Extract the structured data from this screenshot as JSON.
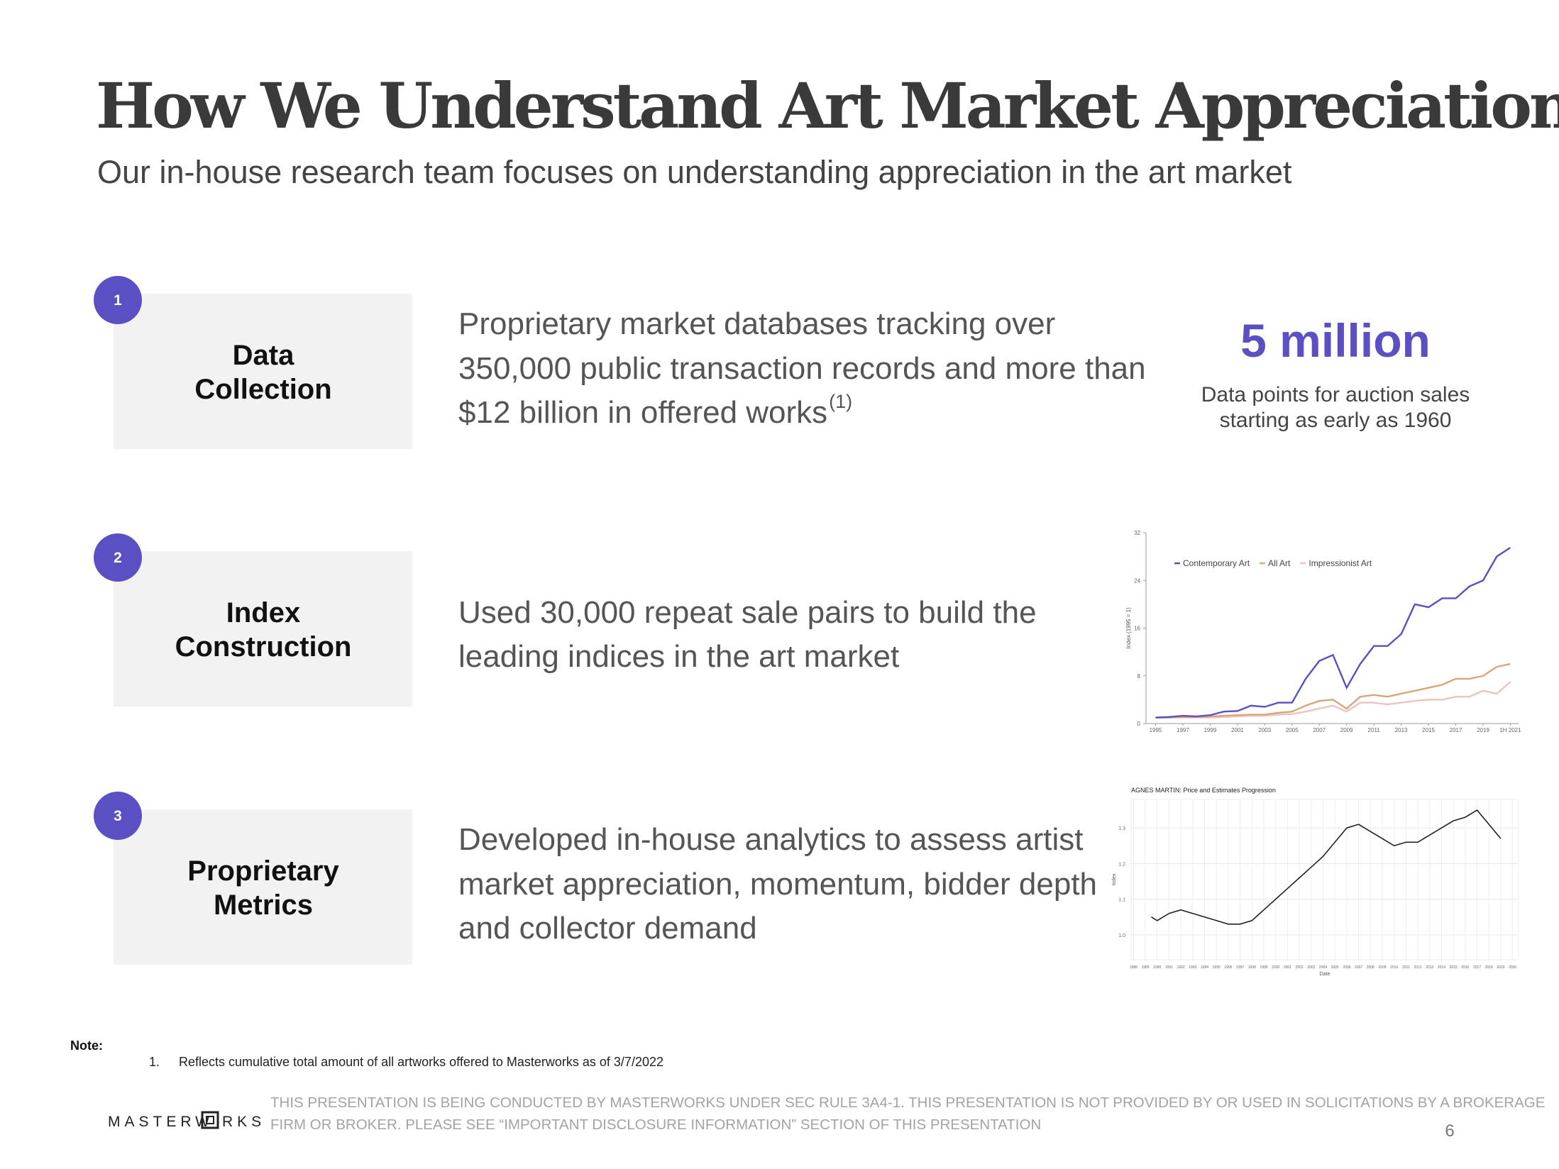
{
  "header": {
    "title": "How We Understand Art Market Appreciation",
    "subtitle": "Our in-house research team focuses on understanding appreciation in the art market"
  },
  "steps": [
    {
      "number": "1",
      "label": [
        "Data",
        "Collection"
      ],
      "description": [
        "Proprietary market databases tracking over",
        "350,000 public transaction records and more than",
        "$12 billion in offered works"
      ],
      "footnote_ref": "(1)"
    },
    {
      "number": "2",
      "label": [
        "Index",
        "Construction"
      ],
      "description": [
        "Used 30,000 repeat sale pairs to build the",
        "leading indices in the art market"
      ]
    },
    {
      "number": "3",
      "label": [
        "Proprietary",
        "Metrics"
      ],
      "description": [
        "Developed in-house analytics to assess artist",
        "market appreciation, momentum, bidder depth",
        "and collector demand"
      ]
    }
  ],
  "stat": {
    "value": "5 million",
    "caption": [
      "Data points for auction sales",
      "starting as early as 1960"
    ]
  },
  "chart_data": [
    {
      "type": "line",
      "y_label": "Index (1995 = 1)",
      "legend": "top-left",
      "x": [
        1995,
        1996,
        1997,
        1998,
        1999,
        2000,
        2001,
        2002,
        2003,
        2004,
        2005,
        2006,
        2007,
        2008,
        2009,
        2010,
        2011,
        2012,
        2013,
        2014,
        2015,
        2016,
        2017,
        2018,
        2019,
        2020,
        2021
      ],
      "series": [
        {
          "name": "Contemporary Art",
          "color": "#5b4fc4",
          "values": [
            1,
            1.1,
            1.3,
            1.2,
            1.4,
            2,
            2.1,
            3,
            2.8,
            3.5,
            3.5,
            7.5,
            10.5,
            11.5,
            6,
            10,
            13,
            13,
            15,
            20,
            19.5,
            21,
            21,
            23,
            24,
            28,
            29.5
          ]
        },
        {
          "name": "All Art",
          "color": "#d9a67c",
          "values": [
            1,
            1,
            1.1,
            1.1,
            1.2,
            1.3,
            1.4,
            1.5,
            1.5,
            1.8,
            2,
            3,
            3.8,
            4,
            2.5,
            4.5,
            4.8,
            4.5,
            5,
            5.5,
            6,
            6.5,
            7.5,
            7.5,
            8,
            9.5,
            10
          ]
        },
        {
          "name": "Impressionist Art",
          "color": "#efc2c2",
          "values": [
            1,
            1,
            1,
            1,
            1,
            1.1,
            1.2,
            1.3,
            1.3,
            1.5,
            1.6,
            2,
            2.5,
            3,
            2,
            3.5,
            3.5,
            3.2,
            3.5,
            3.8,
            4,
            4,
            4.5,
            4.5,
            5.5,
            5,
            7
          ]
        }
      ],
      "xlim": [
        1994.3,
        2021.6
      ],
      "ylim": [
        0,
        32
      ],
      "yticks": [
        0,
        8,
        16,
        24,
        32
      ],
      "xticks": [
        1995,
        1997,
        1999,
        2001,
        2003,
        2005,
        2007,
        2009,
        2011,
        2013,
        2015,
        2017,
        2019,
        {
          "value": 2021,
          "label": "1H 2021"
        }
      ]
    },
    {
      "type": "line",
      "title": "AGNES MARTIN: Price and Estimates Progression",
      "y_label": "Index",
      "x_label": "Date",
      "grid": true,
      "color": "#222222",
      "x": [
        1989.5,
        1990,
        1991,
        1992,
        1993,
        1994,
        1995,
        1996,
        1997,
        1998,
        1999,
        2000,
        2001,
        2002,
        2003,
        2004,
        2005,
        2006,
        2007,
        2008,
        2009,
        2010,
        2011,
        2012,
        2013,
        2014,
        2015,
        2016,
        2017,
        2018,
        2019
      ],
      "values": [
        1.05,
        1.04,
        1.06,
        1.07,
        1.06,
        1.05,
        1.04,
        1.03,
        1.03,
        1.04,
        1.07,
        1.1,
        1.13,
        1.16,
        1.19,
        1.22,
        1.26,
        1.3,
        1.31,
        1.29,
        1.27,
        1.25,
        1.26,
        1.26,
        1.28,
        1.3,
        1.32,
        1.33,
        1.35,
        1.31,
        1.27
      ],
      "xlim": [
        1987.8,
        2020.5
      ],
      "ylim": [
        0.93,
        1.38
      ],
      "yticks": [
        {
          "value": 1,
          "label": "1.0"
        },
        1.1,
        1.2,
        1.3
      ],
      "xticks": [
        1988,
        1989,
        1990,
        1991,
        1992,
        1993,
        1994,
        1995,
        1996,
        1997,
        1998,
        1999,
        2000,
        2001,
        2002,
        2003,
        2004,
        2005,
        2006,
        2007,
        2008,
        2009,
        2010,
        2011,
        2012,
        2013,
        2014,
        2015,
        2016,
        2017,
        2018,
        2019,
        2020
      ]
    }
  ],
  "notes": {
    "label": "Note:",
    "items": [
      {
        "marker": "1.",
        "text": "Reflects cumulative total amount of all artworks offered to Masterworks as of 3/7/2022"
      }
    ]
  },
  "footer": {
    "logo": [
      "MASTERW",
      "RKS"
    ],
    "disclaimer": [
      "THIS PRESENTATION  IS BEING CONDUCTED BY MASTERWORKS UNDER SEC RULE 3A4-1. THIS PRESENTATION  IS NOT PROVIDED BY OR USED IN SOLICITATIONS BY A BROKERAGE",
      "FIRM OR BROKER. PLEASE SEE “IMPORTANT DISCLOSURE INFORMATION” SECTION OF THIS PRESENTATION"
    ],
    "page": "6"
  }
}
